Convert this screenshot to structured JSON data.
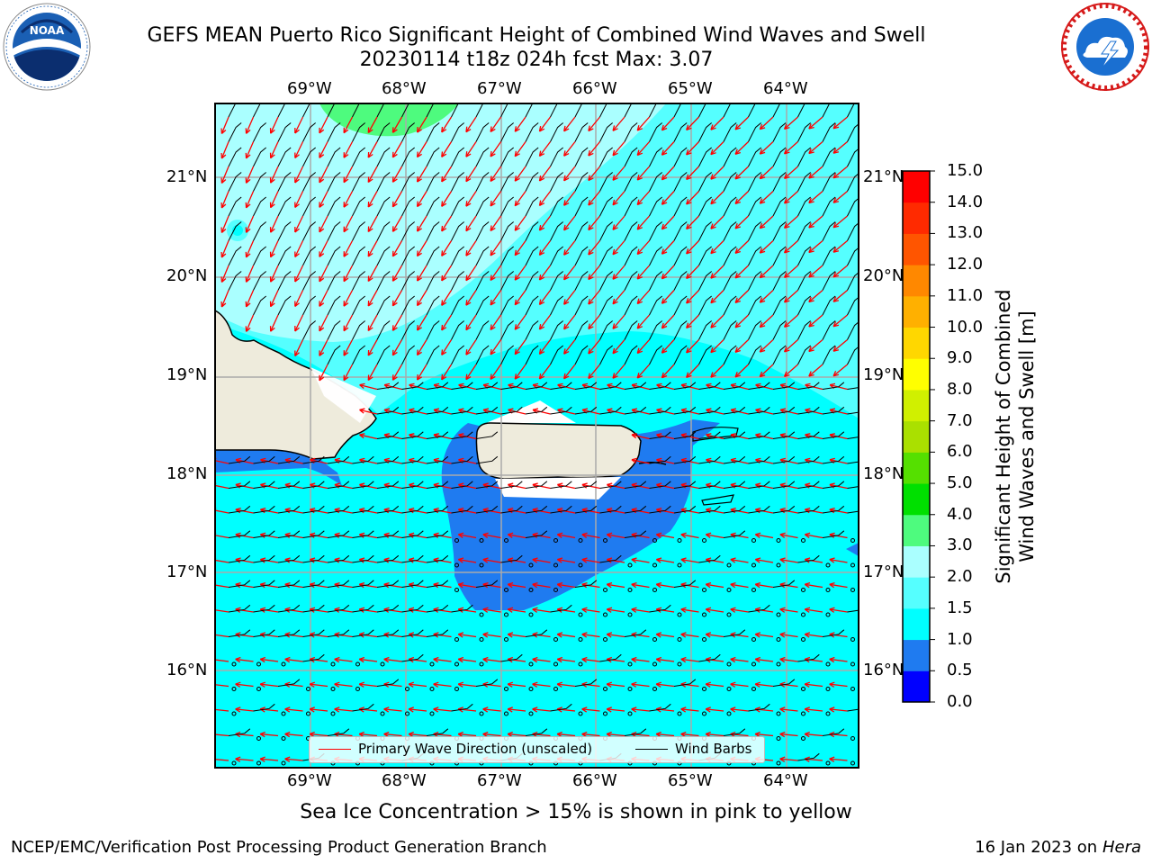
{
  "title": {
    "line1": "GEFS MEAN Puerto Rico Significant Height of Combined Wind Waves and Swell",
    "line2": "20230114 t18z 024h fcst   Max: 3.07"
  },
  "logos": {
    "left": {
      "name": "NOAA",
      "ring_text": "NATIONAL OCEANIC AND ATMOSPHERIC ADMINISTRATION · U.S. DEPARTMENT OF COMMERCE",
      "colors": {
        "ring": "#ffffff",
        "inner": "#1a5fb4",
        "dark": "#0b2e6f"
      }
    },
    "right": {
      "name": "National Weather Service",
      "ring_text": "NATIONAL WEATHER SERVICE",
      "colors": {
        "ring": "#d61a1a",
        "inner": "#1a6fd1"
      }
    }
  },
  "map": {
    "lon_ticks": [
      "69°W",
      "68°W",
      "67°W",
      "66°W",
      "65°W",
      "64°W"
    ],
    "lat_ticks": [
      "21°N",
      "20°N",
      "19°N",
      "18°N",
      "17°N",
      "16°N"
    ],
    "extent": {
      "lon": [
        -70.0,
        -63.25
      ],
      "lat": [
        15.0,
        21.75
      ]
    },
    "colors": {
      "land": "#eeebdc",
      "ocean_0_5_1_0": "#1f7bf0",
      "ocean_1_0_1_5": "#00ffff",
      "ocean_1_5_2_0": "#55ffff",
      "ocean_2_0_3_0": "#aaffff",
      "ocean_3_0_4_0": "#4efb7e",
      "grid": "#aaaaaa",
      "wave_arrow": "#ff0000",
      "wind_barb": "#000000"
    }
  },
  "legend": {
    "wave_label": "Primary Wave Direction (unscaled)",
    "barb_label": "Wind Barbs"
  },
  "colorbar": {
    "label": "Significant Height of Combined Wind Waves and Swell [m]",
    "label_lines": [
      "Significant Height of Combined",
      "Wind Waves and Swell [m]"
    ],
    "ticks": [
      "0.0",
      "0.5",
      "1.0",
      "1.5",
      "2.0",
      "3.0",
      "4.0",
      "5.0",
      "6.0",
      "7.0",
      "8.0",
      "9.0",
      "10.0",
      "11.0",
      "12.0",
      "13.0",
      "14.0",
      "15.0"
    ],
    "colors": [
      "#0000ff",
      "#1f7bf0",
      "#00ffff",
      "#55ffff",
      "#aaffff",
      "#4efb7e",
      "#00e000",
      "#55e000",
      "#aae000",
      "#d0f000",
      "#ffff00",
      "#ffd700",
      "#ffb000",
      "#ff8800",
      "#ff5500",
      "#ff2a00",
      "#ff0000"
    ]
  },
  "note": "Sea Ice Concentration > 15% is shown in pink to yellow",
  "footer": {
    "left": "NCEP/EMC/Verification Post Processing Product Generation Branch",
    "right_date": "16 Jan 2023 on ",
    "right_host": "Hera"
  }
}
